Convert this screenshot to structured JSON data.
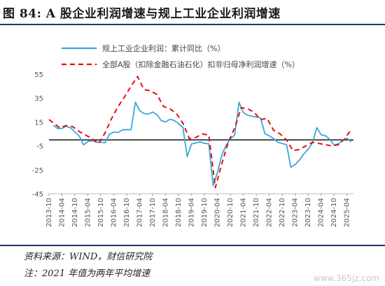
{
  "header": {
    "title": "图 84:  A 股企业利润增速与规上工业企业利润增速"
  },
  "footer": {
    "source": "资料来源：WIND，财信研究院",
    "note": "注：2021 年值为两年平均增速",
    "watermark": "www.365jz.com"
  },
  "colors": {
    "series1": "#3aa8d8",
    "series2": "#e01010",
    "rule": "#1f3864"
  },
  "chart_data": {
    "type": "line",
    "title": "",
    "xlabel": "",
    "ylabel": "",
    "ylim": [
      -45,
      55
    ],
    "yticks": [
      "55",
      "35",
      "15",
      "-5",
      "-25",
      "-45"
    ],
    "ytick_values": [
      55,
      35,
      15,
      -5,
      -25,
      -45
    ],
    "x_range": [
      "2013-10",
      "2025-07"
    ],
    "xticks": [
      "2013-10",
      "2014-04",
      "2014-10",
      "2015-04",
      "2015-10",
      "2016-04",
      "2016-10",
      "2017-04",
      "2017-10",
      "2018-04",
      "2018-10",
      "2019-04",
      "2019-10",
      "2020-04",
      "2020-10",
      "2021-04",
      "2021-10",
      "2022-04",
      "2022-10",
      "2023-04",
      "2023-10",
      "2024-04",
      "2024-10",
      "2025-04"
    ],
    "legend_position": "top",
    "series": [
      {
        "name": "规上工业企业利润：累计同比（%）",
        "style": "solid",
        "x": [
          "2013-12",
          "2014-02",
          "2014-04",
          "2014-06",
          "2014-08",
          "2014-10",
          "2014-12",
          "2015-02",
          "2015-04",
          "2015-06",
          "2015-08",
          "2015-10",
          "2015-12",
          "2016-02",
          "2016-04",
          "2016-06",
          "2016-08",
          "2016-10",
          "2016-12",
          "2017-02",
          "2017-04",
          "2017-06",
          "2017-08",
          "2017-10",
          "2017-12",
          "2018-02",
          "2018-04",
          "2018-06",
          "2018-08",
          "2018-10",
          "2018-12",
          "2019-02",
          "2019-04",
          "2019-06",
          "2019-08",
          "2019-10",
          "2019-12",
          "2020-02",
          "2020-04",
          "2020-06",
          "2020-08",
          "2020-10",
          "2020-12",
          "2021-02",
          "2021-04",
          "2021-06",
          "2021-08",
          "2021-10",
          "2021-12",
          "2022-02",
          "2022-04",
          "2022-06",
          "2022-08",
          "2022-10",
          "2022-12",
          "2023-02",
          "2023-04",
          "2023-06",
          "2023-08",
          "2023-10",
          "2023-12",
          "2024-02",
          "2024-04",
          "2024-06",
          "2024-08",
          "2024-10",
          "2024-12",
          "2025-02",
          "2025-04",
          "2025-06"
        ],
        "values": [
          12.2,
          9.5,
          9.6,
          11.4,
          10.0,
          6.7,
          3.3,
          -4.2,
          -1.3,
          -0.7,
          -1.9,
          -2.0,
          -2.3,
          4.8,
          6.5,
          6.2,
          8.4,
          8.6,
          8.5,
          31.5,
          24.4,
          22.0,
          21.6,
          23.3,
          21.0,
          16.1,
          15.0,
          17.2,
          16.2,
          13.6,
          10.3,
          -14.0,
          -3.4,
          -2.4,
          -1.7,
          -2.9,
          -3.3,
          -38.3,
          -27.4,
          -12.8,
          -4.4,
          0.7,
          4.1,
          31.5,
          22.8,
          20.6,
          19.8,
          19.1,
          18.2,
          5.0,
          3.5,
          1.0,
          -2.1,
          -3.0,
          -4.0,
          -22.9,
          -20.6,
          -16.8,
          -11.7,
          -7.8,
          -2.3,
          10.2,
          4.3,
          3.5,
          0.5,
          -4.3,
          -3.3,
          -0.3,
          1.4,
          -1.8
        ]
      },
      {
        "name": "全部A股（扣除金融石油石化）扣非归母净利润增速（%）",
        "style": "dashed",
        "x": [
          "2013-10",
          "2014-03",
          "2014-06",
          "2014-09",
          "2014-12",
          "2015-03",
          "2015-06",
          "2015-09",
          "2015-12",
          "2016-03",
          "2016-06",
          "2016-09",
          "2016-12",
          "2017-03",
          "2017-06",
          "2017-09",
          "2017-12",
          "2018-03",
          "2018-06",
          "2018-09",
          "2018-12",
          "2019-03",
          "2019-06",
          "2019-09",
          "2019-12",
          "2020-03",
          "2020-06",
          "2020-09",
          "2020-12",
          "2021-03",
          "2021-06",
          "2021-09",
          "2021-12",
          "2022-03",
          "2022-06",
          "2022-09",
          "2022-12",
          "2023-03",
          "2023-06",
          "2023-09",
          "2023-12",
          "2024-03",
          "2024-06",
          "2024-09",
          "2024-12",
          "2025-03",
          "2025-06"
        ],
        "values": [
          17.0,
          10.0,
          12.0,
          11.0,
          7.0,
          4.0,
          1.0,
          -3.0,
          6.0,
          18.0,
          28.0,
          36.0,
          45.0,
          53.0,
          42.0,
          41.0,
          38.0,
          28.0,
          26.0,
          22.0,
          14.0,
          1.0,
          2.0,
          5.0,
          4.0,
          -40.0,
          -20.0,
          -2.0,
          10.0,
          27.0,
          26.0,
          23.0,
          17.0,
          18.0,
          8.0,
          5.0,
          0.0,
          -9.0,
          -8.0,
          -5.0,
          -2.0,
          -3.0,
          -4.0,
          -5.0,
          -4.0,
          1.0,
          9.0
        ]
      }
    ]
  }
}
